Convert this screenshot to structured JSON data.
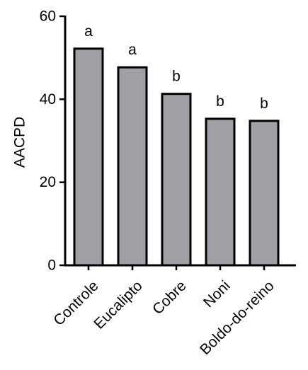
{
  "chart_data": {
    "type": "bar",
    "categories": [
      "Controle",
      "Eucalipto",
      "Cobre",
      "Noni",
      "Boldo-do-reino"
    ],
    "values": [
      52.2,
      47.7,
      41.3,
      35.3,
      34.8
    ],
    "significance_letters": [
      "a",
      "a",
      "b",
      "b",
      "b"
    ],
    "ylabel": "AACPD",
    "xlabel": "",
    "title": "",
    "ylim": [
      0,
      60
    ],
    "yticks": [
      0,
      20,
      40,
      60
    ],
    "bar_color": "#a0a0a4",
    "grid": false,
    "legend": "none"
  }
}
